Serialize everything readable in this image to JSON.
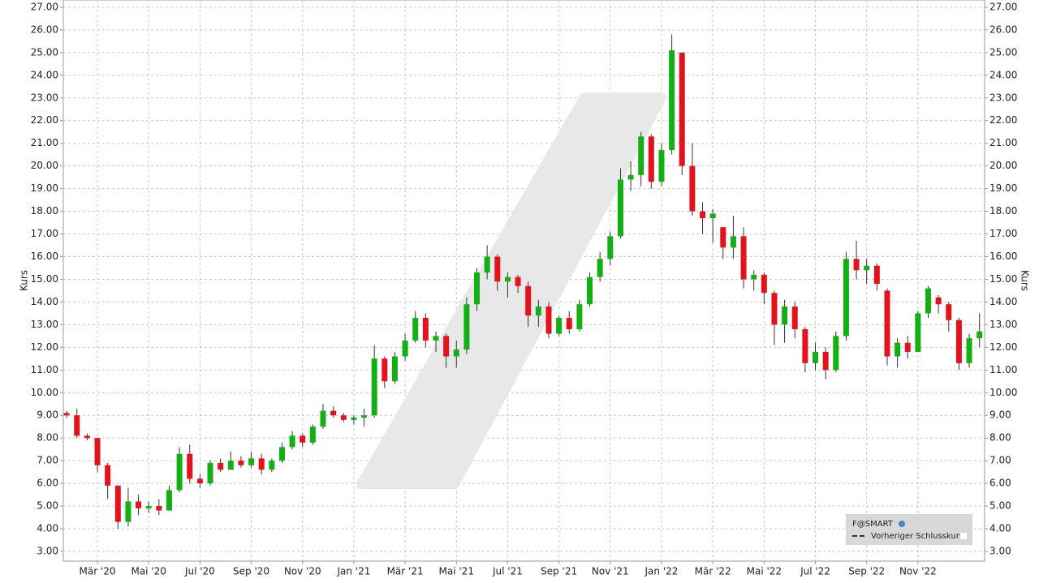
{
  "chart_data": {
    "type": "candlestick",
    "ylabel": "Kurs",
    "series_name": "F@SMART",
    "reference_line_name": "Vorheriger Schlusskurs",
    "up_color": "#12b012",
    "down_color": "#e3121c",
    "grid": true,
    "legend_position": "lower right",
    "xlim": [
      0.67,
      36.6
    ],
    "ylim": [
      2.57,
      27.32
    ],
    "xticks": [
      {
        "value": 2,
        "label": "Mär '20"
      },
      {
        "value": 4,
        "label": "Mai '20"
      },
      {
        "value": 6,
        "label": "Jul '20"
      },
      {
        "value": 8,
        "label": "Sep '20"
      },
      {
        "value": 10,
        "label": "Nov '20"
      },
      {
        "value": 12,
        "label": "Jan '21"
      },
      {
        "value": 14,
        "label": "Mär '21"
      },
      {
        "value": 16,
        "label": "Mai '21"
      },
      {
        "value": 18,
        "label": "Jul '21"
      },
      {
        "value": 20,
        "label": "Sep '21"
      },
      {
        "value": 22,
        "label": "Nov '21"
      },
      {
        "value": 24,
        "label": "Jan '22"
      },
      {
        "value": 26,
        "label": "Mär '22"
      },
      {
        "value": 28,
        "label": "Mai '22"
      },
      {
        "value": 30,
        "label": "Jul '22"
      },
      {
        "value": 32,
        "label": "Sep '22"
      },
      {
        "value": 34,
        "label": "Nov '22"
      }
    ],
    "yticks": [
      {
        "value": 3,
        "label": "3.00"
      },
      {
        "value": 4,
        "label": "4.00"
      },
      {
        "value": 5,
        "label": "5.00"
      },
      {
        "value": 6,
        "label": "6.00"
      },
      {
        "value": 7,
        "label": "7.00"
      },
      {
        "value": 8,
        "label": "8.00"
      },
      {
        "value": 9,
        "label": "9.00"
      },
      {
        "value": 10,
        "label": "10.00"
      },
      {
        "value": 11,
        "label": "11.00"
      },
      {
        "value": 12,
        "label": "12.00"
      },
      {
        "value": 13,
        "label": "13.00"
      },
      {
        "value": 14,
        "label": "14.00"
      },
      {
        "value": 15,
        "label": "15.00"
      },
      {
        "value": 16,
        "label": "16.00"
      },
      {
        "value": 17,
        "label": "17.00"
      },
      {
        "value": 18,
        "label": "18.00"
      },
      {
        "value": 19,
        "label": "19.00"
      },
      {
        "value": 20,
        "label": "20.00"
      },
      {
        "value": 21,
        "label": "21.00"
      },
      {
        "value": 22,
        "label": "22.00"
      },
      {
        "value": 23,
        "label": "23.00"
      },
      {
        "value": 24,
        "label": "24.00"
      },
      {
        "value": 25,
        "label": "25.00"
      },
      {
        "value": 26,
        "label": "26.00"
      },
      {
        "value": 27,
        "label": "27.00"
      }
    ],
    "x": [
      0.8,
      1.2,
      1.6,
      2.0,
      2.4,
      2.8,
      3.2,
      3.6,
      4.0,
      4.4,
      4.8,
      5.2,
      5.6,
      6.0,
      6.4,
      6.8,
      7.2,
      7.6,
      8.0,
      8.4,
      8.8,
      9.2,
      9.6,
      10.0,
      10.4,
      10.8,
      11.2,
      11.6,
      12.0,
      12.4,
      12.8,
      13.2,
      13.6,
      14.0,
      14.4,
      14.8,
      15.2,
      15.6,
      16.0,
      16.4,
      16.8,
      17.2,
      17.6,
      18.0,
      18.4,
      18.8,
      19.2,
      19.6,
      20.0,
      20.4,
      20.8,
      21.2,
      21.6,
      22.0,
      22.4,
      22.8,
      23.2,
      23.6,
      24.0,
      24.4,
      24.8,
      25.2,
      25.6,
      26.0,
      26.4,
      26.8,
      27.2,
      27.6,
      28.0,
      28.4,
      28.8,
      29.2,
      29.6,
      30.0,
      30.4,
      30.8,
      31.2,
      31.6,
      32.0,
      32.4,
      32.8,
      33.2,
      33.6,
      34.0,
      34.4,
      34.8,
      35.2,
      35.6,
      36.0,
      36.4
    ],
    "open": [
      9.1,
      9.0,
      8.1,
      8.0,
      6.8,
      5.9,
      4.3,
      5.2,
      4.9,
      5.0,
      4.8,
      5.7,
      7.3,
      6.2,
      6.0,
      6.9,
      6.6,
      7.0,
      6.8,
      7.1,
      6.6,
      7.0,
      7.6,
      8.1,
      7.8,
      8.5,
      9.2,
      9.0,
      8.8,
      8.9,
      9.0,
      11.5,
      10.5,
      11.6,
      12.3,
      13.3,
      12.3,
      12.5,
      11.6,
      11.9,
      13.9,
      15.3,
      16.0,
      14.9,
      15.1,
      14.7,
      13.4,
      13.8,
      12.6,
      13.3,
      12.8,
      13.9,
      15.1,
      15.9,
      16.9,
      19.4,
      19.6,
      21.3,
      19.3,
      20.7,
      25.0,
      20.0,
      18.0,
      17.7,
      17.3,
      16.4,
      16.9,
      15.0,
      15.2,
      14.4,
      13.0,
      13.8,
      12.8,
      11.3,
      11.8,
      11.0,
      12.5,
      15.9,
      15.4,
      15.6,
      14.5,
      11.6,
      12.2,
      11.8,
      13.5,
      14.2,
      13.9,
      13.2,
      11.3,
      12.4
    ],
    "high": [
      9.2,
      9.3,
      8.2,
      8.0,
      6.9,
      5.9,
      5.8,
      5.5,
      5.2,
      5.3,
      5.9,
      7.6,
      7.7,
      6.4,
      7.0,
      7.1,
      7.4,
      7.2,
      7.4,
      7.3,
      7.1,
      7.8,
      8.3,
      8.2,
      8.6,
      9.5,
      9.4,
      9.1,
      9.0,
      9.3,
      12.1,
      11.6,
      11.8,
      12.6,
      13.6,
      13.5,
      12.7,
      12.6,
      12.3,
      14.2,
      15.5,
      16.5,
      16.1,
      15.3,
      15.2,
      14.9,
      14.1,
      14.0,
      13.4,
      13.6,
      14.1,
      15.3,
      16.2,
      17.1,
      19.9,
      20.2,
      21.5,
      21.4,
      21.0,
      25.8,
      25.0,
      21.0,
      18.4,
      18.1,
      17.3,
      17.8,
      17.3,
      15.4,
      15.3,
      14.5,
      14.1,
      14.0,
      12.9,
      12.2,
      12.0,
      12.7,
      16.2,
      16.7,
      15.9,
      15.7,
      14.6,
      12.4,
      12.5,
      13.6,
      14.7,
      14.3,
      14.0,
      13.3,
      12.6,
      13.5
    ],
    "low": [
      8.9,
      8.0,
      7.9,
      6.5,
      5.3,
      4.0,
      4.1,
      4.6,
      4.7,
      4.6,
      4.8,
      5.6,
      6.0,
      5.8,
      5.9,
      6.5,
      6.6,
      6.7,
      6.7,
      6.4,
      6.5,
      6.9,
      7.5,
      7.6,
      7.7,
      8.4,
      8.9,
      8.7,
      8.6,
      8.5,
      8.9,
      10.2,
      10.4,
      11.4,
      12.2,
      12.0,
      11.8,
      11.1,
      11.1,
      11.7,
      13.6,
      15.0,
      14.5,
      14.2,
      14.4,
      12.9,
      12.9,
      12.4,
      12.5,
      12.6,
      12.7,
      13.8,
      14.9,
      15.6,
      16.8,
      18.9,
      19.1,
      19.0,
      19.1,
      20.5,
      19.6,
      17.8,
      17.0,
      16.6,
      15.9,
      15.9,
      14.6,
      14.5,
      13.9,
      12.1,
      12.2,
      12.4,
      10.9,
      11.0,
      10.6,
      10.9,
      12.3,
      15.0,
      14.8,
      14.5,
      11.2,
      11.1,
      11.5,
      11.8,
      13.3,
      13.5,
      12.7,
      11.0,
      11.1,
      12.0
    ],
    "close": [
      9.0,
      8.1,
      8.0,
      6.8,
      5.9,
      4.3,
      5.2,
      4.9,
      5.0,
      4.8,
      5.7,
      7.3,
      6.2,
      6.0,
      6.9,
      6.6,
      7.0,
      6.8,
      7.1,
      6.6,
      7.0,
      7.6,
      8.1,
      7.8,
      8.5,
      9.2,
      9.0,
      8.8,
      8.9,
      9.0,
      11.5,
      10.5,
      11.6,
      12.3,
      13.3,
      12.3,
      12.5,
      11.6,
      11.9,
      13.9,
      15.3,
      16.0,
      14.9,
      15.1,
      14.7,
      13.4,
      13.8,
      12.6,
      13.3,
      12.8,
      13.9,
      15.1,
      15.9,
      16.9,
      19.4,
      19.6,
      21.3,
      19.3,
      20.7,
      25.1,
      20.0,
      18.0,
      17.7,
      17.9,
      16.4,
      16.9,
      15.0,
      15.2,
      14.4,
      13.0,
      13.8,
      12.8,
      11.3,
      11.8,
      11.0,
      12.5,
      15.9,
      15.4,
      15.6,
      14.8,
      11.6,
      12.2,
      11.8,
      13.5,
      14.6,
      13.9,
      13.2,
      11.3,
      12.4,
      12.7
    ]
  }
}
